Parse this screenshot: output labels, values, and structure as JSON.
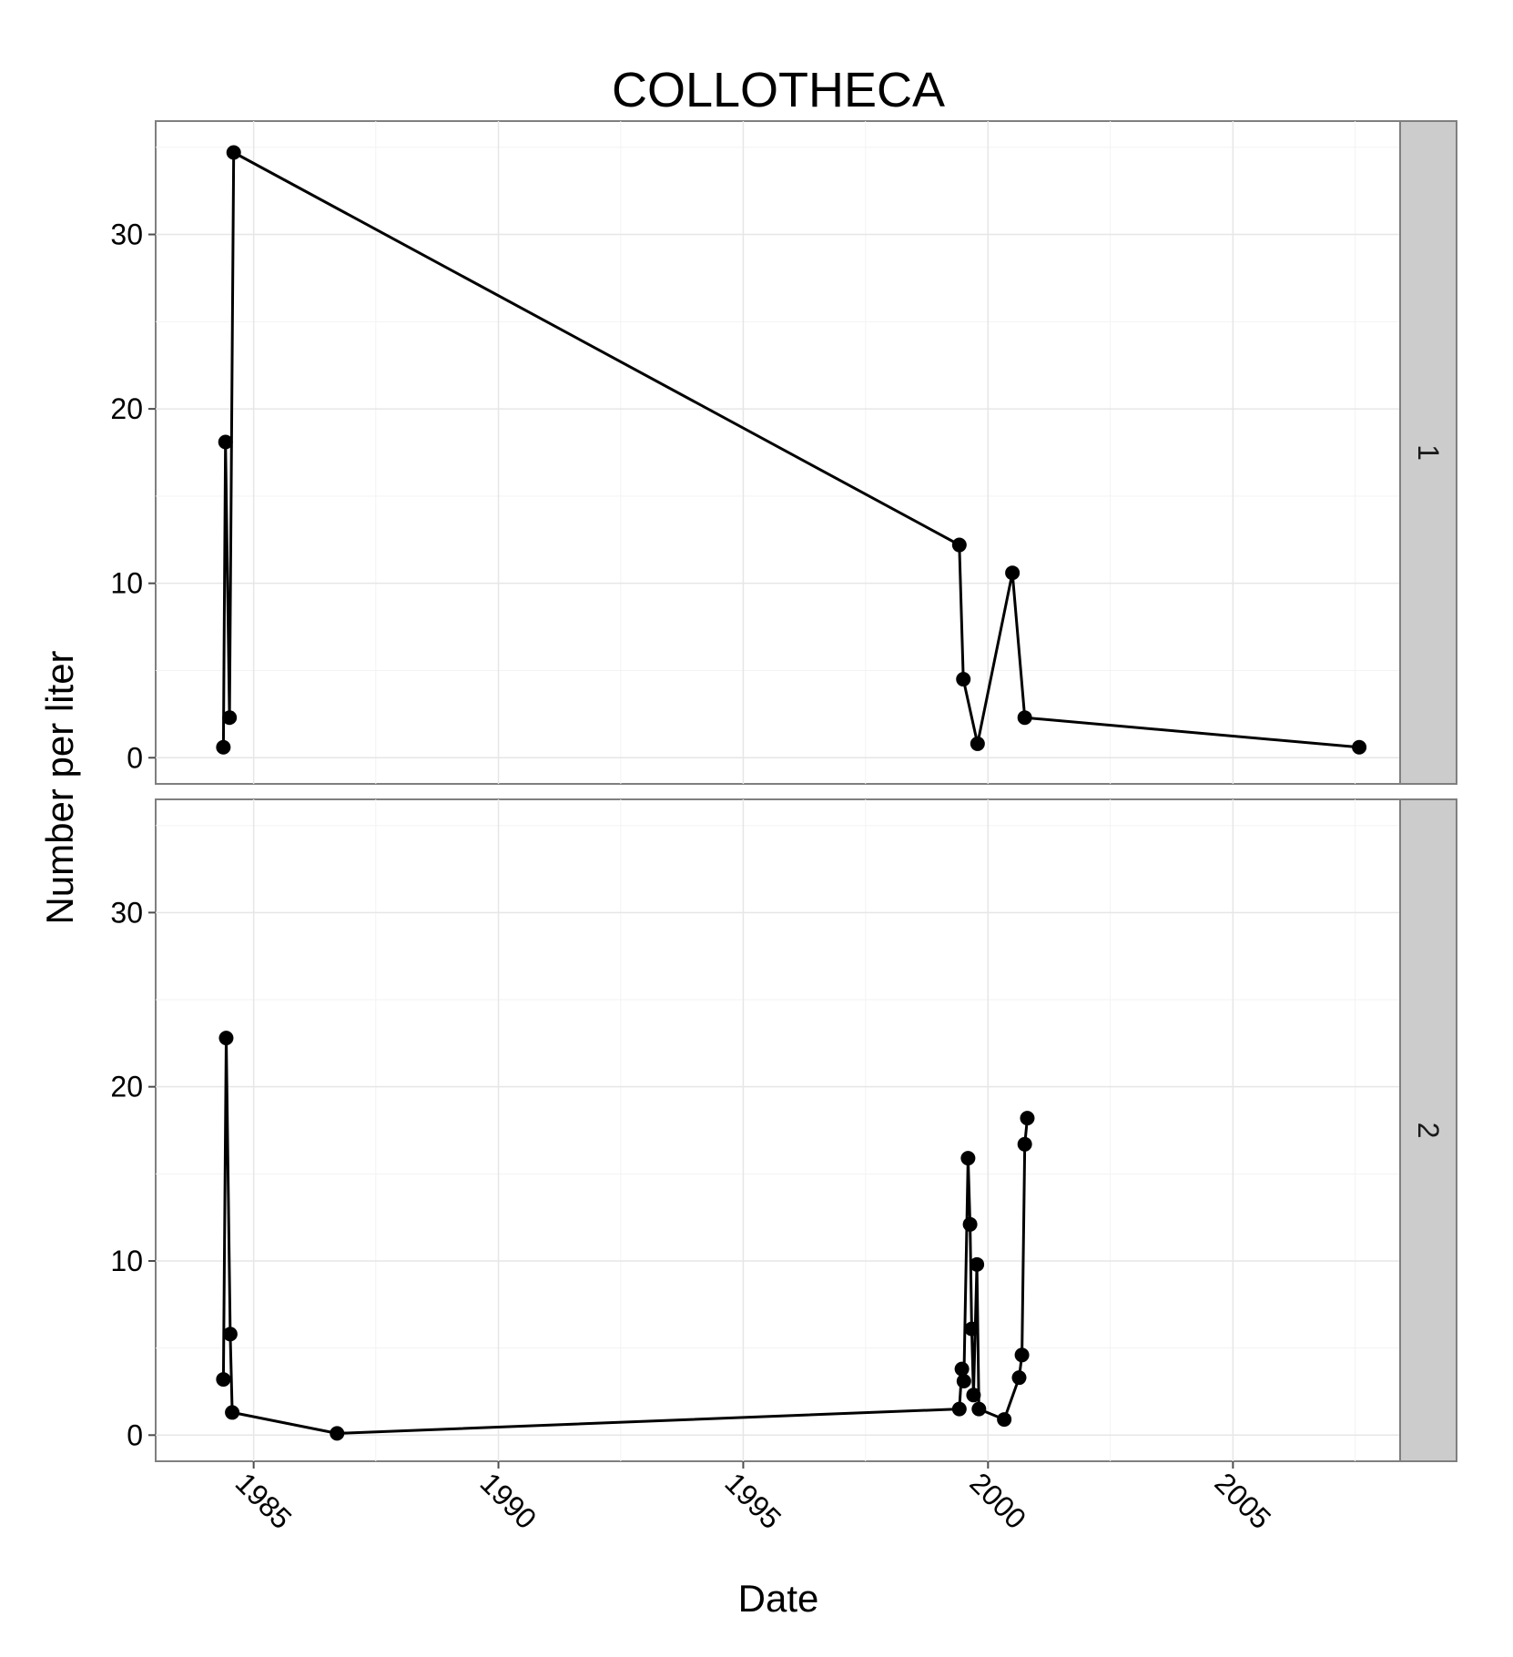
{
  "chart_data": {
    "type": "line",
    "title": "COLLOTHECA",
    "xlabel": "Date",
    "ylabel": "Number per liter",
    "xlim": [
      "1983-01-01",
      "2008-06-01"
    ],
    "ylim": [
      -1.5,
      36.5
    ],
    "x_ticks": [
      {
        "date": "1985-01-01",
        "label": "1985"
      },
      {
        "date": "1990-01-01",
        "label": "1990"
      },
      {
        "date": "1995-01-01",
        "label": "1995"
      },
      {
        "date": "2000-01-01",
        "label": "2000"
      },
      {
        "date": "2005-01-01",
        "label": "2005"
      }
    ],
    "x_minor_ticks": [
      "1987-07-01",
      "1992-07-01",
      "1997-07-01",
      "2002-07-01",
      "2007-07-01"
    ],
    "y_ticks": [
      0,
      10,
      20,
      30
    ],
    "y_minor_ticks": [
      5,
      15,
      25,
      35
    ],
    "grid": true,
    "panels": [
      {
        "strip": "1",
        "points": [
          {
            "date": "1984-05-20",
            "value": 0.6
          },
          {
            "date": "1984-06-05",
            "value": 18.1
          },
          {
            "date": "1984-07-05",
            "value": 2.3
          },
          {
            "date": "1984-08-05",
            "value": 34.7
          },
          {
            "date": "1999-06-01",
            "value": 12.2
          },
          {
            "date": "1999-07-01",
            "value": 4.5
          },
          {
            "date": "1999-10-15",
            "value": 0.8
          },
          {
            "date": "2000-07-01",
            "value": 10.6
          },
          {
            "date": "2000-10-01",
            "value": 2.3
          },
          {
            "date": "2007-08-01",
            "value": 0.6
          }
        ]
      },
      {
        "strip": "2",
        "points": [
          {
            "date": "1984-05-20",
            "value": 3.2
          },
          {
            "date": "1984-06-10",
            "value": 22.8
          },
          {
            "date": "1984-07-10",
            "value": 5.8
          },
          {
            "date": "1984-07-25",
            "value": 1.3
          },
          {
            "date": "1986-09-15",
            "value": 0.1
          },
          {
            "date": "1999-06-01",
            "value": 1.5
          },
          {
            "date": "1999-06-20",
            "value": 3.8
          },
          {
            "date": "1999-07-05",
            "value": 3.1
          },
          {
            "date": "1999-08-05",
            "value": 15.9
          },
          {
            "date": "1999-08-20",
            "value": 12.1
          },
          {
            "date": "1999-09-01",
            "value": 6.1
          },
          {
            "date": "1999-09-15",
            "value": 2.3
          },
          {
            "date": "1999-10-10",
            "value": 9.8
          },
          {
            "date": "1999-10-25",
            "value": 1.5
          },
          {
            "date": "2000-05-01",
            "value": 0.9
          },
          {
            "date": "2000-08-20",
            "value": 3.3
          },
          {
            "date": "2000-09-10",
            "value": 4.6
          },
          {
            "date": "2000-10-01",
            "value": 16.7
          },
          {
            "date": "2000-10-20",
            "value": 18.2
          }
        ]
      }
    ]
  }
}
